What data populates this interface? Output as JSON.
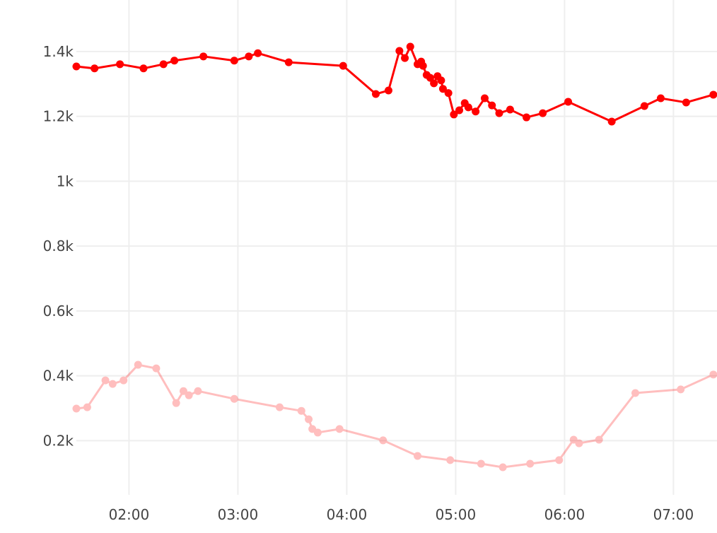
{
  "chart_data": {
    "type": "line",
    "title": "",
    "xlabel": "",
    "ylabel": "",
    "grid": true,
    "x_unit": "time (HH:MM)",
    "xlim": [
      "01:31",
      "07:24"
    ],
    "ylim": [
      33,
      1559
    ],
    "x_ticks": [
      "02:00",
      "03:00",
      "04:00",
      "05:00",
      "06:00",
      "07:00"
    ],
    "y_ticks": [
      {
        "value": 200,
        "label": "0.2k"
      },
      {
        "value": 400,
        "label": "0.4k"
      },
      {
        "value": 600,
        "label": "0.6k"
      },
      {
        "value": 800,
        "label": "0.8k"
      },
      {
        "value": 1000,
        "label": "1k"
      },
      {
        "value": 1200,
        "label": "1.2k"
      },
      {
        "value": 1400,
        "label": "1.4k"
      }
    ],
    "series": [
      {
        "color": "#ff0000",
        "opacity": 1,
        "x": [
          "01:31",
          "01:41",
          "01:55",
          "02:08",
          "02:19",
          "02:25",
          "02:41",
          "02:58",
          "03:06",
          "03:11",
          "03:28",
          "03:58",
          "04:16",
          "04:23",
          "04:29",
          "04:32",
          "04:35",
          "04:39",
          "04:41",
          "04:42",
          "04:44",
          "04:46",
          "04:48",
          "04:50",
          "04:52",
          "04:53",
          "04:56",
          "04:59",
          "05:02",
          "05:05",
          "05:07",
          "05:11",
          "05:16",
          "05:20",
          "05:24",
          "05:30",
          "05:39",
          "05:48",
          "06:02",
          "06:26",
          "06:44",
          "06:53",
          "07:07",
          "07:22"
        ],
        "y": [
          1354,
          1348,
          1361,
          1348,
          1361,
          1372,
          1385,
          1372,
          1385,
          1395,
          1367,
          1356,
          1269,
          1280,
          1402,
          1380,
          1415,
          1361,
          1369,
          1356,
          1328,
          1319,
          1302,
          1324,
          1311,
          1285,
          1272,
          1206,
          1219,
          1241,
          1228,
          1215,
          1256,
          1234,
          1210,
          1221,
          1197,
          1210,
          1245,
          1184,
          1232,
          1256,
          1243,
          1267
        ]
      },
      {
        "color": "#ff0000",
        "opacity": 0.25,
        "x": [
          "01:31",
          "01:37",
          "01:47",
          "01:51",
          "01:57",
          "02:05",
          "02:15",
          "02:26",
          "02:30",
          "02:33",
          "02:38",
          "02:58",
          "03:23",
          "03:35",
          "03:39",
          "03:41",
          "03:44",
          "03:56",
          "04:20",
          "04:39",
          "04:57",
          "05:14",
          "05:26",
          "05:41",
          "05:57",
          "06:05",
          "06:08",
          "06:19",
          "06:39",
          "07:04",
          "07:22"
        ],
        "y": [
          299,
          303,
          386,
          375,
          386,
          434,
          423,
          316,
          353,
          340,
          353,
          329,
          303,
          292,
          266,
          236,
          225,
          236,
          201,
          153,
          140,
          129,
          118,
          129,
          140,
          203,
          192,
          203,
          347,
          358,
          404
        ]
      }
    ]
  }
}
